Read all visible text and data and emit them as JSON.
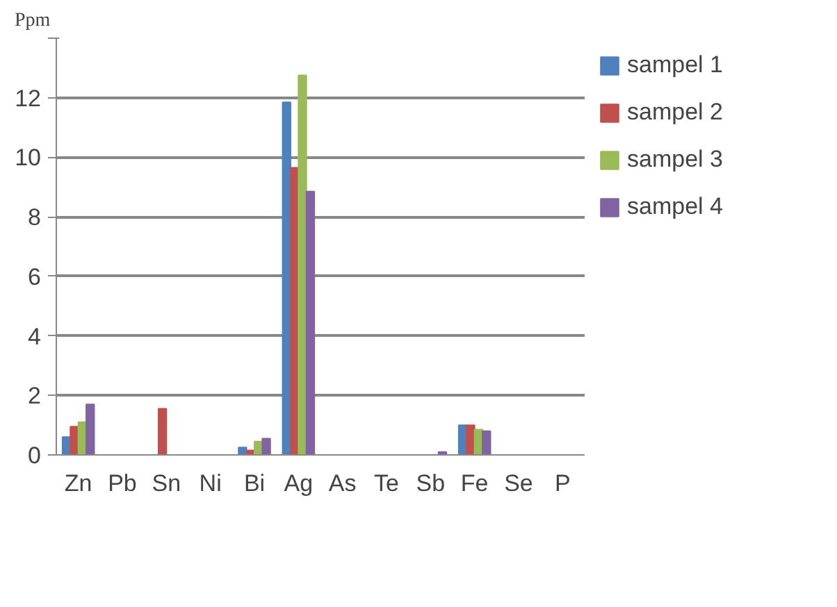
{
  "chart_data": {
    "type": "bar",
    "ylabel": "Ppm",
    "categories": [
      "Zn",
      "Pb",
      "Sn",
      "Ni",
      "Bi",
      "Ag",
      "As",
      "Te",
      "Sb",
      "Fe",
      "Se",
      "P"
    ],
    "series": [
      {
        "name": "sampel 1",
        "color": "#4f81bd",
        "values": [
          0.6,
          0,
          0,
          0,
          0.25,
          11.85,
          0,
          0,
          0,
          1.0,
          0,
          0
        ]
      },
      {
        "name": "sampel 2",
        "color": "#c0504d",
        "values": [
          0.95,
          0,
          1.55,
          0,
          0.15,
          9.65,
          0,
          0,
          0,
          1.0,
          0,
          0
        ]
      },
      {
        "name": "sampel 3",
        "color": "#9bbb59",
        "values": [
          1.1,
          0,
          0,
          0,
          0.45,
          12.75,
          0,
          0,
          0,
          0.85,
          0,
          0
        ]
      },
      {
        "name": "sampel 4",
        "color": "#8064a2",
        "values": [
          1.7,
          0,
          0,
          0,
          0.55,
          8.85,
          0,
          0,
          0.1,
          0.8,
          0,
          0
        ]
      }
    ],
    "ylim": [
      0,
      14
    ],
    "yticks": [
      0,
      2,
      4,
      6,
      8,
      10,
      12,
      {
        "value": 14,
        "label": null
      }
    ],
    "grid": "y",
    "legend": "right"
  }
}
